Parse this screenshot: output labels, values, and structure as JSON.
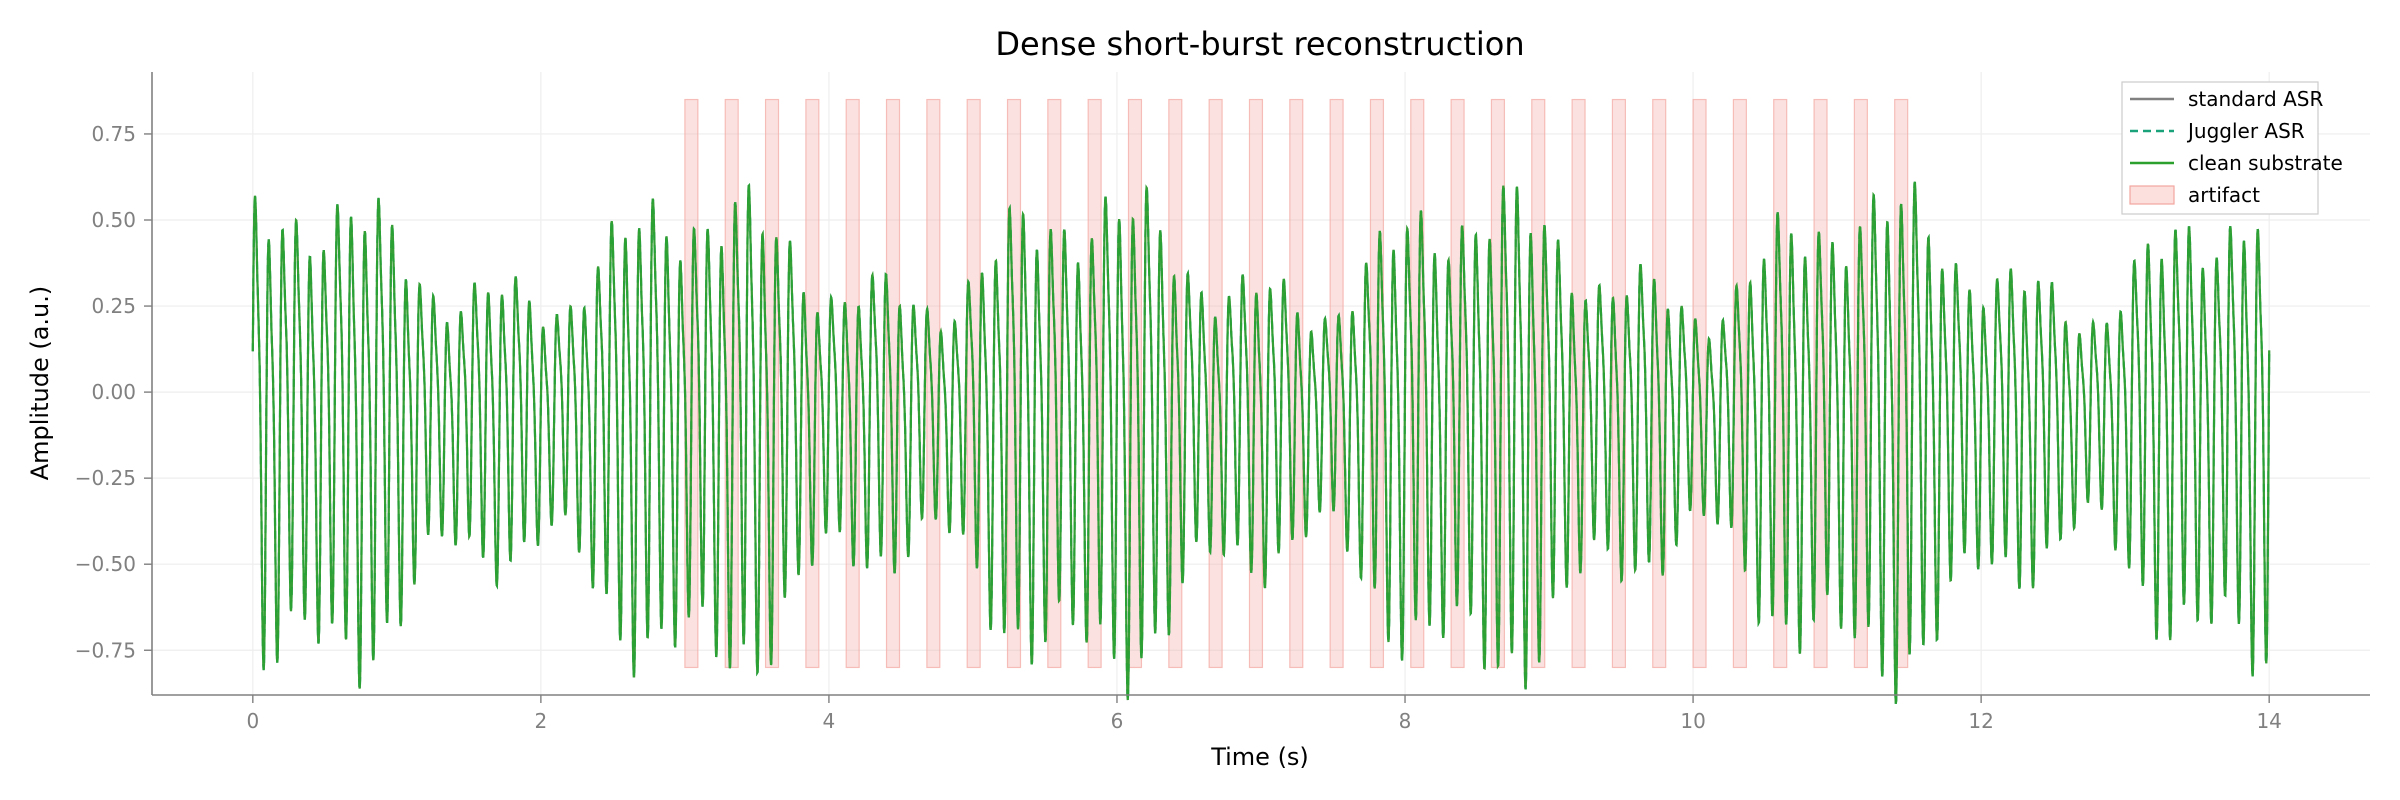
{
  "chart_data": {
    "type": "line",
    "title": "Dense short-burst reconstruction",
    "xlabel": "Time (s)",
    "ylabel": "Amplitude (a.u.)",
    "xlim": [
      -0.7,
      14.7
    ],
    "ylim": [
      -0.88,
      0.93
    ],
    "xticks": [
      0,
      2,
      4,
      6,
      8,
      10,
      12,
      14
    ],
    "xtick_labels": [
      "0",
      "2",
      "4",
      "6",
      "8",
      "10",
      "12",
      "14"
    ],
    "yticks": [
      -0.75,
      -0.5,
      -0.25,
      0.0,
      0.25,
      0.5,
      0.75
    ],
    "ytick_labels": [
      "−0.75",
      "−0.50",
      "−0.25",
      "0.00",
      "0.25",
      "0.50",
      "0.75"
    ],
    "grid": true,
    "legend_position": "top-right",
    "series": [
      {
        "name": "standard ASR",
        "color": "#808080",
        "style": "solid",
        "signal": "follows clean substrate"
      },
      {
        "name": "Juggler ASR",
        "color": "#1aa37a",
        "style": "dashed",
        "signal": "follows clean substrate"
      },
      {
        "name": "clean substrate",
        "color": "#2ca02c",
        "style": "solid",
        "signal": "oscillation",
        "x_range": [
          0,
          14
        ],
        "dominant_frequency_hz": 10.5,
        "amplitude_range": [
          -0.72,
          0.78
        ]
      }
    ],
    "artifact": {
      "name": "artifact",
      "color": "#f4a6a0",
      "burst_starts": [
        3.0,
        3.28,
        3.56,
        3.84,
        4.12,
        4.4,
        4.68,
        4.96,
        5.24,
        5.52,
        5.8,
        6.08,
        6.36,
        6.64,
        6.92,
        7.2,
        7.48,
        7.76,
        8.04,
        8.32,
        8.6,
        8.88,
        9.16,
        9.44,
        9.72,
        10.0,
        10.28,
        10.56,
        10.84,
        11.12,
        11.4
      ],
      "burst_width": 0.09,
      "y_range": [
        -0.8,
        0.85
      ]
    }
  }
}
